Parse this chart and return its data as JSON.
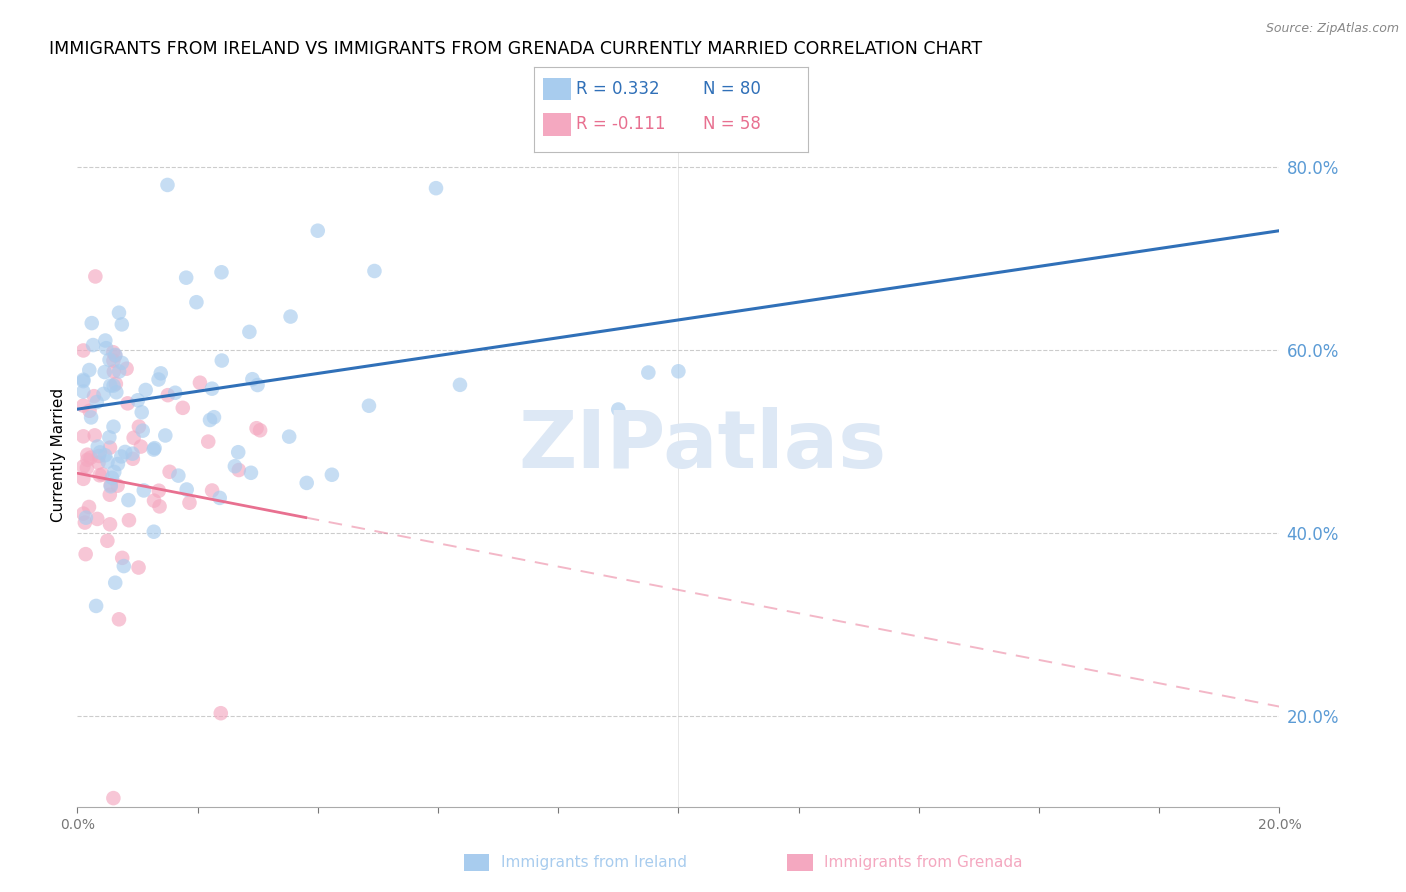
{
  "title": "IMMIGRANTS FROM IRELAND VS IMMIGRANTS FROM GRENADA CURRENTLY MARRIED CORRELATION CHART",
  "source": "Source: ZipAtlas.com",
  "ylabel": "Currently Married",
  "ireland_R": 0.332,
  "ireland_N": 80,
  "grenada_R": -0.111,
  "grenada_N": 58,
  "xmin": 0.0,
  "xmax": 0.2,
  "ymin": 0.1,
  "ymax": 0.87,
  "ytick_values": [
    0.2,
    0.4,
    0.6,
    0.8
  ],
  "ireland_color": "#A8CCEE",
  "grenada_color": "#F4A8C0",
  "ireland_line_color": "#3070B8",
  "grenada_line_color": "#E87090",
  "background_color": "#FFFFFF",
  "grid_color": "#CCCCCC",
  "right_axis_color": "#5B9BD5",
  "title_fontsize": 12.5,
  "source_fontsize": 9,
  "watermark_color": "#DDE8F5",
  "legend_R1": "R = 0.332",
  "legend_N1": "N = 80",
  "legend_R2": "R = -0.111",
  "legend_N2": "N = 58"
}
